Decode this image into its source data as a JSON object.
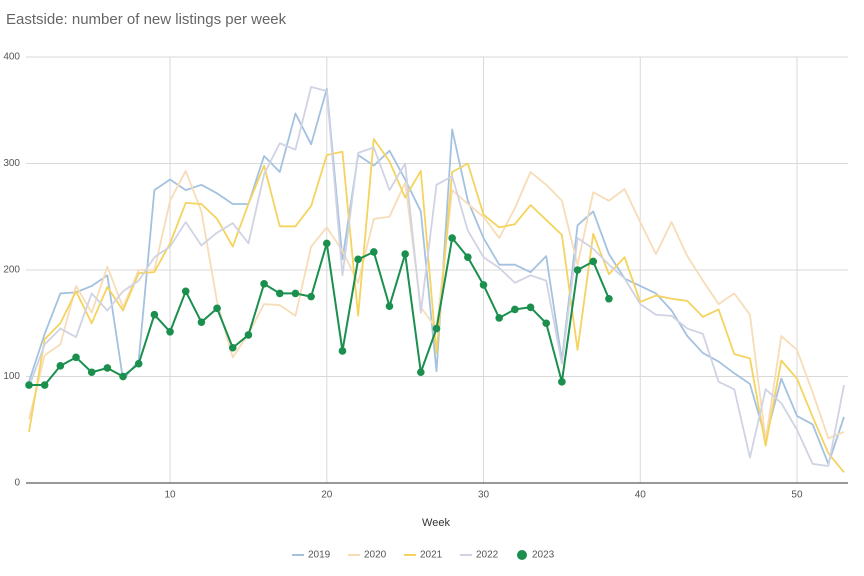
{
  "chart_data": {
    "type": "line",
    "title": "Eastside: number of new listings per week",
    "x_label": "Week",
    "x": [
      1,
      2,
      3,
      4,
      5,
      6,
      7,
      8,
      9,
      10,
      11,
      12,
      13,
      14,
      15,
      16,
      17,
      18,
      19,
      20,
      21,
      22,
      23,
      24,
      25,
      26,
      27,
      28,
      29,
      30,
      31,
      32,
      33,
      34,
      35,
      36,
      37,
      38,
      39,
      40,
      41,
      42,
      43,
      44,
      45,
      46,
      47,
      48,
      49,
      50,
      51,
      52,
      53
    ],
    "xlim": [
      1,
      53
    ],
    "xticks": [
      10,
      20,
      30,
      40,
      50
    ],
    "ylim": [
      0,
      400
    ],
    "yticks": [
      0,
      100,
      200,
      300,
      400
    ],
    "grid": true,
    "legend": "bottom",
    "series": [
      {
        "name": "2019",
        "color": "#a4c2e0",
        "values": [
          95,
          140,
          178,
          179,
          185,
          195,
          97,
          115,
          275,
          285,
          275,
          280,
          272,
          262,
          262,
          307,
          292,
          347,
          318,
          370,
          210,
          308,
          298,
          312,
          285,
          255,
          105,
          332,
          265,
          230,
          205,
          205,
          198,
          213,
          115,
          242,
          255,
          215,
          192,
          185,
          178,
          162,
          138,
          122,
          114,
          103,
          93,
          42,
          98,
          63,
          55,
          18,
          62
        ]
      },
      {
        "name": "2020",
        "color": "#f7dcb8",
        "values": [
          60,
          120,
          130,
          185,
          160,
          203,
          165,
          200,
          200,
          265,
          293,
          255,
          170,
          118,
          140,
          168,
          167,
          157,
          222,
          240,
          218,
          188,
          248,
          250,
          282,
          165,
          145,
          275,
          262,
          250,
          230,
          258,
          292,
          280,
          265,
          205,
          273,
          265,
          276,
          245,
          215,
          245,
          213,
          190,
          168,
          178,
          158,
          40,
          138,
          125,
          85,
          42,
          48
        ]
      },
      {
        "name": "2021",
        "color": "#f4d35e",
        "values": [
          48,
          135,
          150,
          180,
          150,
          184,
          162,
          197,
          198,
          225,
          263,
          262,
          248,
          222,
          262,
          298,
          241,
          241,
          260,
          308,
          311,
          157,
          323,
          302,
          268,
          293,
          122,
          292,
          300,
          252,
          240,
          243,
          261,
          247,
          233,
          125,
          234,
          196,
          212,
          170,
          176,
          173,
          171,
          156,
          163,
          121,
          117,
          35,
          115,
          98,
          62,
          28,
          10
        ]
      },
      {
        "name": "2022",
        "color": "#d0d3e3",
        "values": [
          90,
          130,
          145,
          137,
          178,
          162,
          180,
          190,
          212,
          222,
          245,
          223,
          235,
          244,
          225,
          290,
          319,
          313,
          372,
          368,
          195,
          310,
          315,
          275,
          300,
          160,
          280,
          288,
          237,
          212,
          202,
          188,
          195,
          190,
          112,
          230,
          220,
          205,
          192,
          168,
          158,
          157,
          145,
          140,
          95,
          88,
          24,
          88,
          75,
          50,
          18,
          16,
          92
        ]
      },
      {
        "name": "2023",
        "color": "#1a8f4e",
        "markers": true,
        "values": [
          92,
          92,
          110,
          118,
          104,
          108,
          100,
          112,
          158,
          142,
          180,
          151,
          164,
          127,
          139,
          187,
          178,
          178,
          175,
          225,
          124,
          210,
          217,
          166,
          215,
          104,
          145,
          230,
          212,
          186,
          155,
          163,
          165,
          150,
          95,
          200,
          208,
          173,
          null,
          null,
          null,
          null,
          null,
          null,
          null,
          null,
          null,
          null,
          null,
          null,
          null,
          null,
          null
        ]
      }
    ]
  }
}
